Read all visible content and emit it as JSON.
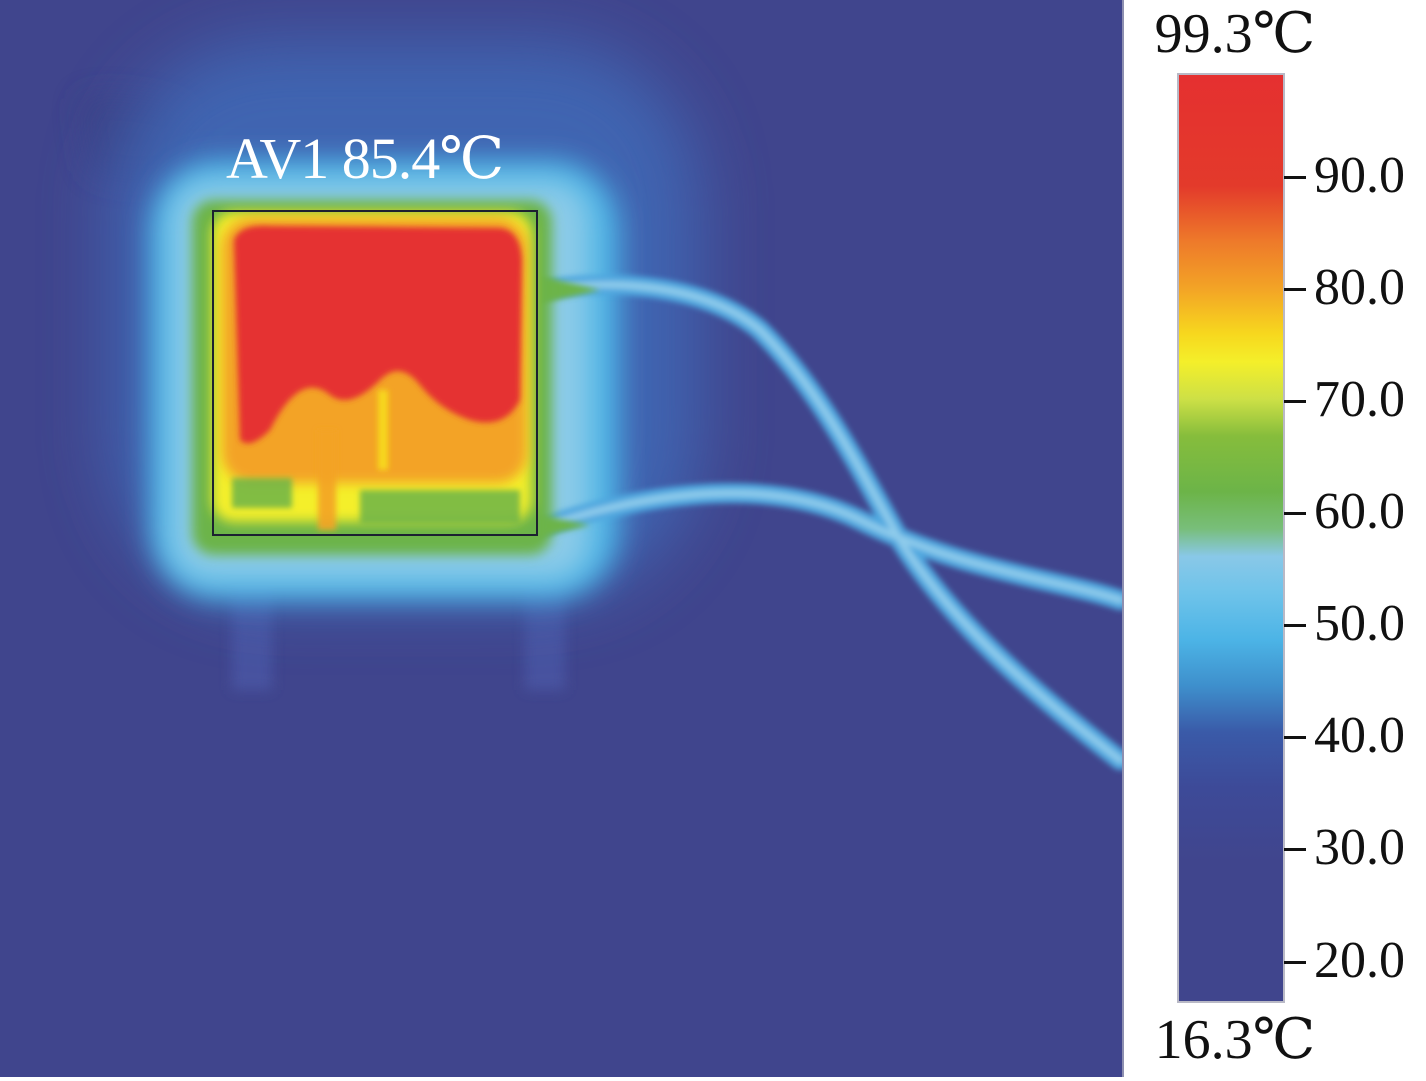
{
  "thermal_image": {
    "annotation": "AV1 85.4℃",
    "palette": {
      "background": "#40458d",
      "cool_halo": "#4ab2e6",
      "mid_green": "#6cb448",
      "warm_yellow": "#f4ef2a",
      "hot_red": "#e53030"
    }
  },
  "color_scale": {
    "max_label": "99.3℃",
    "min_label": "16.3℃",
    "max_value": 99.3,
    "min_value": 16.3,
    "ticks": [
      {
        "label": "90.0",
        "value": 90.0
      },
      {
        "label": "80.0",
        "value": 80.0
      },
      {
        "label": "70.0",
        "value": 70.0
      },
      {
        "label": "60.0",
        "value": 60.0
      },
      {
        "label": "50.0",
        "value": 50.0
      },
      {
        "label": "40.0",
        "value": 40.0
      },
      {
        "label": "30.0",
        "value": 30.0
      },
      {
        "label": "20.0",
        "value": 20.0
      }
    ]
  }
}
